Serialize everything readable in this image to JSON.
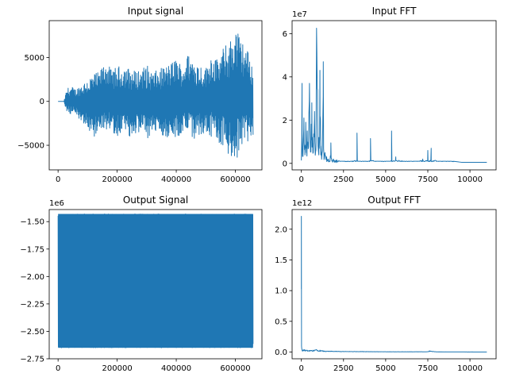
{
  "chart_data": [
    {
      "type": "line",
      "title": "Input signal",
      "xlabel": "",
      "ylabel": "",
      "xlim": [
        -30000,
        690000
      ],
      "ylim": [
        -7800,
        9200
      ],
      "x_ticks": [
        0,
        200000,
        400000,
        600000
      ],
      "x_tick_labels": [
        "0",
        "200000",
        "400000",
        "600000"
      ],
      "y_ticks": [
        -5000,
        0,
        5000
      ],
      "y_tick_labels": [
        "−5000",
        "0",
        "5000"
      ],
      "y_offset_label": "",
      "series": [
        {
          "color": "#1f77b4",
          "x": [
            0,
            20000,
            30000,
            45000,
            60000,
            80000,
            100000,
            120000,
            140000,
            160000,
            180000,
            200000,
            220000,
            240000,
            260000,
            280000,
            300000,
            320000,
            340000,
            360000,
            380000,
            400000,
            420000,
            440000,
            460000,
            480000,
            500000,
            520000,
            540000,
            560000,
            580000,
            600000,
            620000,
            640000,
            660000
          ],
          "upper": [
            0,
            0,
            1500,
            1700,
            1400,
            2000,
            2600,
            3200,
            3300,
            4700,
            3600,
            3900,
            4200,
            3800,
            3500,
            3700,
            4200,
            3300,
            3600,
            4000,
            4300,
            5000,
            4100,
            5400,
            4900,
            4300,
            3800,
            5600,
            4700,
            6200,
            6800,
            8800,
            7000,
            6000,
            4000
          ],
          "lower": [
            0,
            0,
            -1400,
            -1600,
            -1500,
            -2300,
            -2900,
            -4300,
            -3000,
            -3800,
            -3400,
            -3900,
            -4000,
            -4100,
            -3700,
            -3500,
            -4700,
            -3400,
            -3700,
            -4000,
            -4200,
            -4100,
            -3800,
            -4300,
            -4600,
            -3900,
            -3500,
            -4300,
            -4800,
            -5100,
            -6600,
            -7400,
            -5600,
            -4700,
            -3900
          ]
        }
      ]
    },
    {
      "type": "line",
      "title": "Input FFT",
      "xlabel": "",
      "ylabel": "",
      "xlim": [
        -550,
        11550
      ],
      "ylim": [
        -0.3,
        6.6
      ],
      "x_ticks": [
        0,
        2500,
        5000,
        7500,
        10000
      ],
      "x_tick_labels": [
        "0",
        "2500",
        "5000",
        "7500",
        "10000"
      ],
      "y_ticks": [
        0,
        2,
        4,
        6
      ],
      "y_tick_labels": [
        "0",
        "2",
        "4",
        "6"
      ],
      "y_offset_label": "1e7",
      "series": [
        {
          "color": "#1f77b4",
          "x": [
            0,
            40,
            60,
            100,
            150,
            200,
            260,
            300,
            350,
            400,
            480,
            560,
            620,
            700,
            780,
            860,
            900,
            960,
            1040,
            1100,
            1160,
            1250,
            1300,
            1340,
            1400,
            1500,
            1600,
            1700,
            1750,
            1800,
            1900,
            2100,
            2300,
            2600,
            3000,
            3300,
            3350,
            3500,
            3800,
            4050,
            4100,
            4300,
            4800,
            5300,
            5350,
            5550,
            5600,
            6000,
            6500,
            7000,
            7200,
            7350,
            7500,
            7550,
            7700,
            8000,
            8500,
            9000,
            9500,
            10000,
            11000
          ],
          "y": [
            0.2,
            3.7,
            0.5,
            0.6,
            2.1,
            0.8,
            1.9,
            0.5,
            1.5,
            0.7,
            3.7,
            1.0,
            2.8,
            0.9,
            2.4,
            0.6,
            6.25,
            3.4,
            1.2,
            4.3,
            0.8,
            0.6,
            4.7,
            0.4,
            0.5,
            0.3,
            0.2,
            0.15,
            0.95,
            0.15,
            0.2,
            0.15,
            0.1,
            0.1,
            0.1,
            1.4,
            0.1,
            0.1,
            0.1,
            0.1,
            1.15,
            0.1,
            0.1,
            0.1,
            1.5,
            0.1,
            0.3,
            0.1,
            0.1,
            0.1,
            0.2,
            0.1,
            0.6,
            0.1,
            0.7,
            0.1,
            0.1,
            0.1,
            0.05,
            0.05,
            0.05
          ]
        }
      ]
    },
    {
      "type": "line",
      "title": "Output Signal",
      "xlabel": "",
      "ylabel": "",
      "xlim": [
        -30000,
        690000
      ],
      "ylim": [
        -2.75,
        -1.39
      ],
      "x_ticks": [
        0,
        200000,
        400000,
        600000
      ],
      "x_tick_labels": [
        "0",
        "200000",
        "400000",
        "600000"
      ],
      "y_ticks": [
        -2.75,
        -2.5,
        -2.25,
        -2.0,
        -1.75,
        -1.5
      ],
      "y_tick_labels": [
        "−2.75",
        "−2.50",
        "−2.25",
        "−2.00",
        "−1.75",
        "−1.50"
      ],
      "y_offset_label": "1e6",
      "series": [
        {
          "color": "#1f77b4",
          "x": [
            0,
            660000
          ],
          "upper": [
            -1.43,
            -1.43
          ],
          "lower": [
            -2.65,
            -2.65
          ]
        }
      ]
    },
    {
      "type": "line",
      "title": "Output FFT",
      "xlabel": "",
      "ylabel": "",
      "xlim": [
        -550,
        11550
      ],
      "ylim": [
        -0.11,
        2.32
      ],
      "x_ticks": [
        0,
        2500,
        5000,
        7500,
        10000
      ],
      "x_tick_labels": [
        "0",
        "2500",
        "5000",
        "7500",
        "10000"
      ],
      "y_ticks": [
        0.0,
        0.5,
        1.0,
        1.5,
        2.0
      ],
      "y_tick_labels": [
        "0.0",
        "0.5",
        "1.0",
        "1.5",
        "2.0"
      ],
      "y_offset_label": "1e12",
      "series": [
        {
          "color": "#1f77b4",
          "x": [
            0,
            10,
            20,
            40,
            80,
            150,
            300,
            500,
            700,
            900,
            1000,
            1100,
            1400,
            1800,
            2500,
            3500,
            5000,
            7500,
            7600,
            8000,
            11000
          ],
          "y": [
            2.21,
            0.1,
            0.06,
            0.04,
            0.03,
            0.04,
            0.03,
            0.025,
            0.03,
            0.04,
            0.02,
            0.03,
            0.015,
            0.015,
            0.01,
            0.01,
            0.005,
            0.005,
            0.02,
            0.003,
            0.0
          ]
        }
      ]
    }
  ]
}
